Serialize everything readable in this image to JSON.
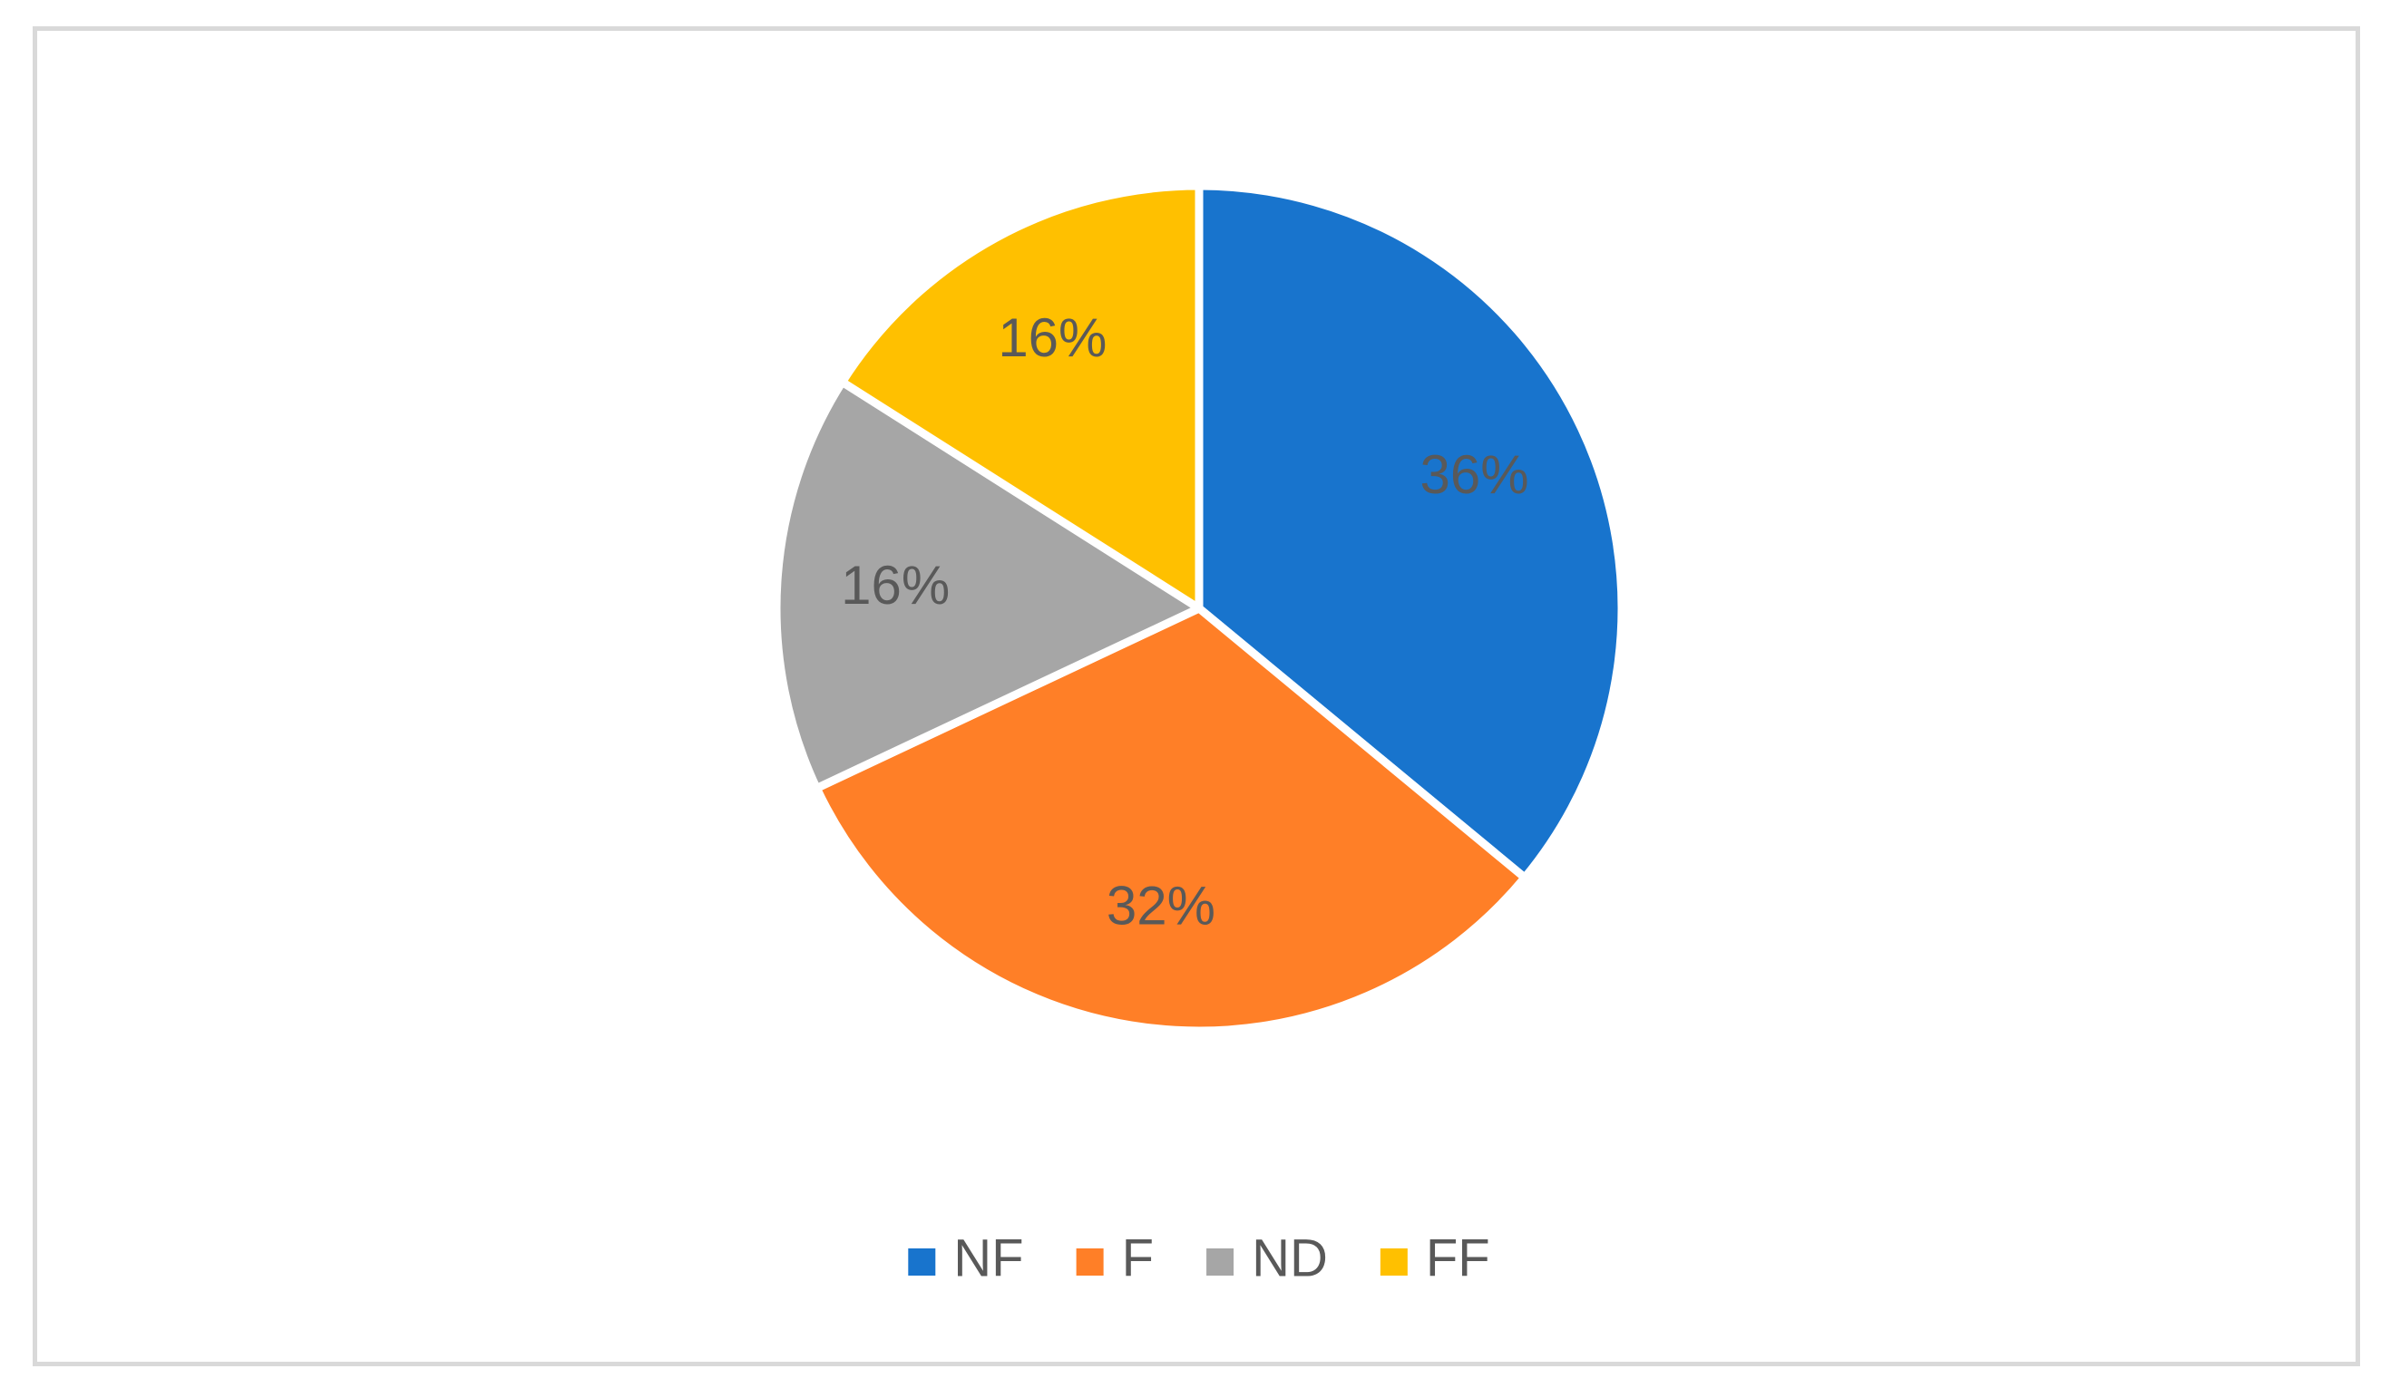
{
  "chart_data": {
    "type": "pie",
    "title": "",
    "slices": [
      {
        "label": "NF",
        "value": 36,
        "data_label": "36%",
        "color": "#1874CD"
      },
      {
        "label": "F",
        "value": 32,
        "data_label": "32%",
        "color": "#FF7F27"
      },
      {
        "label": "ND",
        "value": 16,
        "data_label": "16%",
        "color": "#A6A6A6"
      },
      {
        "label": "FF",
        "value": 16,
        "data_label": "16%",
        "color": "#FFC000"
      }
    ],
    "legend_position": "bottom",
    "start_angle": "12 o'clock",
    "direction": "clockwise"
  }
}
